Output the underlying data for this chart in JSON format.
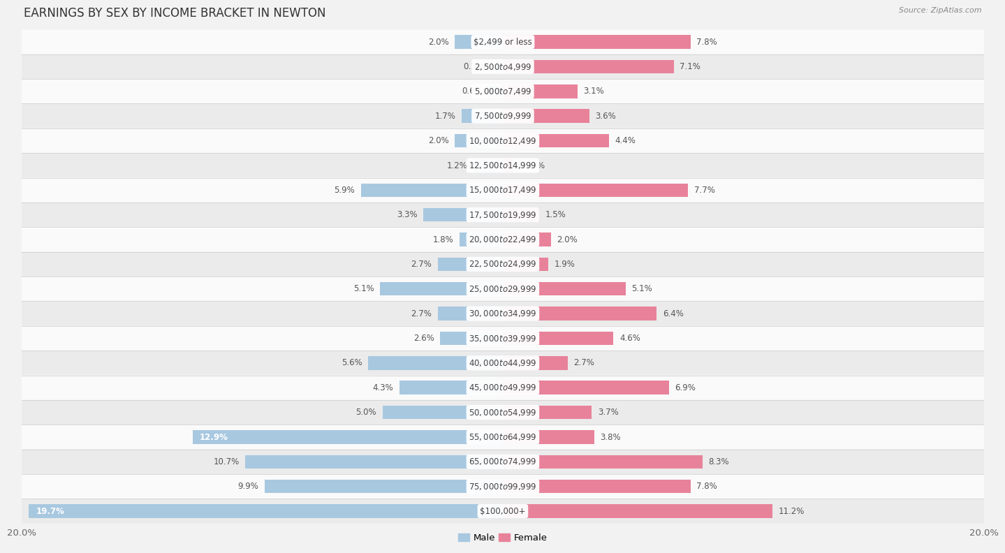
{
  "title": "EARNINGS BY SEX BY INCOME BRACKET IN NEWTON",
  "source": "Source: ZipAtlas.com",
  "categories": [
    "$2,499 or less",
    "$2,500 to $4,999",
    "$5,000 to $7,499",
    "$7,500 to $9,999",
    "$10,000 to $12,499",
    "$12,500 to $14,999",
    "$15,000 to $17,499",
    "$17,500 to $19,999",
    "$20,000 to $22,499",
    "$22,500 to $24,999",
    "$25,000 to $29,999",
    "$30,000 to $34,999",
    "$35,000 to $39,999",
    "$40,000 to $44,999",
    "$45,000 to $49,999",
    "$50,000 to $54,999",
    "$55,000 to $64,999",
    "$65,000 to $74,999",
    "$75,000 to $99,999",
    "$100,000+"
  ],
  "male_values": [
    2.0,
    0.32,
    0.6,
    1.7,
    2.0,
    1.2,
    5.9,
    3.3,
    1.8,
    2.7,
    5.1,
    2.7,
    2.6,
    5.6,
    4.3,
    5.0,
    12.9,
    10.7,
    9.9,
    19.7
  ],
  "female_values": [
    7.8,
    7.1,
    3.1,
    3.6,
    4.4,
    0.43,
    7.7,
    1.5,
    2.0,
    1.9,
    5.1,
    6.4,
    4.6,
    2.7,
    6.9,
    3.7,
    3.8,
    8.3,
    7.8,
    11.2
  ],
  "male_color": "#a8c8e0",
  "female_color": "#e8829a",
  "male_label": "Male",
  "female_label": "Female",
  "bg_color": "#f2f2f2",
  "row_color_light": "#fafafa",
  "row_color_dark": "#ebebeb",
  "axis_label_left": "20.0%",
  "axis_label_right": "20.0%",
  "max_val": 20.0,
  "title_fontsize": 12,
  "bar_label_fontsize": 8.5,
  "category_fontsize": 8.5,
  "bar_height": 0.55
}
